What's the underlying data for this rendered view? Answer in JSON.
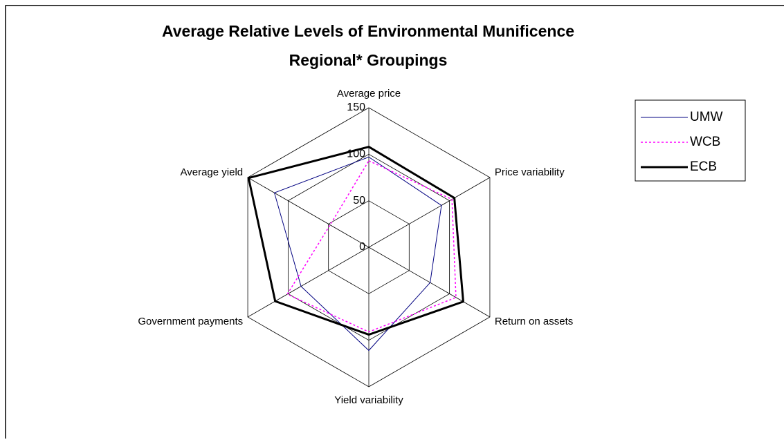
{
  "chart_data": {
    "type": "radar",
    "title": [
      "Average Relative Levels of Environmental Munificence",
      "Regional* Groupings"
    ],
    "categories": [
      "Average price",
      "Price variability",
      "Return on assets",
      "Yield variability",
      "Government payments",
      "Average yield"
    ],
    "series": [
      {
        "name": "UMW",
        "color": "#000080",
        "dash": "solid",
        "width": 1,
        "values": [
          97,
          90,
          76,
          111,
          84,
          117
        ]
      },
      {
        "name": "WCB",
        "color": "#ff00ff",
        "dash": "dotted",
        "width": 1.5,
        "values": [
          93,
          103,
          108,
          91,
          101,
          48
        ]
      },
      {
        "name": "ECB",
        "color": "#000000",
        "dash": "solid",
        "width": 3,
        "values": [
          108,
          106,
          117,
          94,
          116,
          149
        ]
      }
    ],
    "ylim": [
      0,
      150
    ],
    "yticks": [
      0,
      50,
      100,
      150
    ],
    "grid": true,
    "legend": "upper right"
  }
}
